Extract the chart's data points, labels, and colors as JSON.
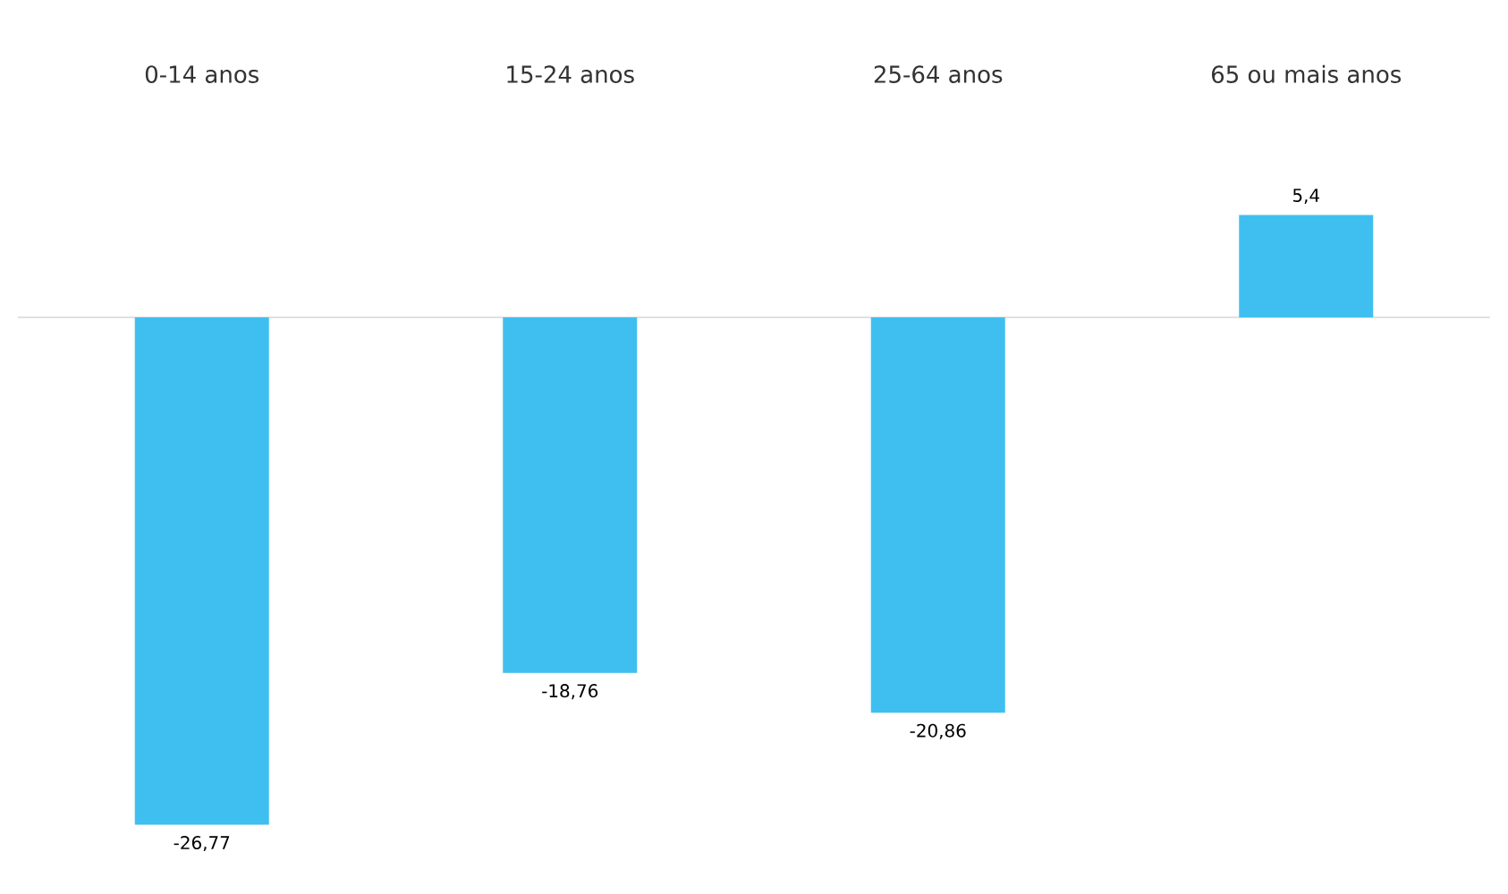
{
  "chart_data": {
    "type": "bar",
    "categories": [
      "0-14 anos",
      "15-24 anos",
      "25-64 anos",
      "65 ou mais anos"
    ],
    "values": [
      -26.77,
      -18.76,
      -20.86,
      5.4
    ],
    "value_labels": [
      "-26,77",
      "-18,76",
      "-20,86",
      "5,4"
    ],
    "color": "#3fbfef"
  }
}
